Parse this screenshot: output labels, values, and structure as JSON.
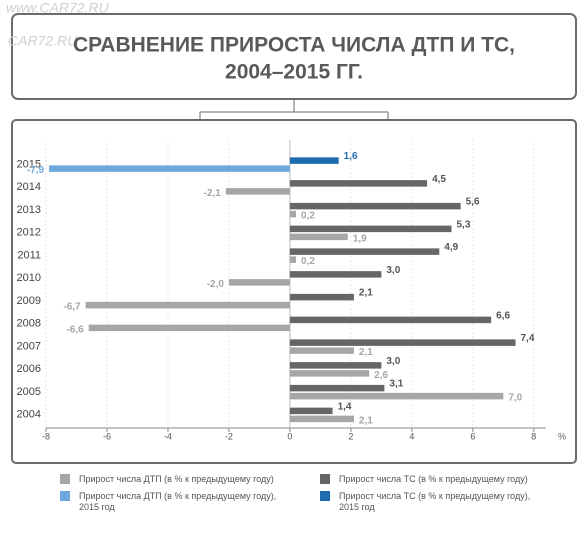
{
  "watermark": [
    "www.CAR72.RU",
    "CAR72.RU"
  ],
  "chart_data": {
    "type": "hbar",
    "title": "СРАВНЕНИЕ ПРИРОСТА ЧИСЛА ДТП И ТС,",
    "subtitle": "2004–2015 ГГ.",
    "x_unit_label": "%",
    "categories": [
      "2015",
      "2014",
      "2013",
      "2012",
      "2011",
      "2010",
      "2009",
      "2008",
      "2007",
      "2006",
      "2005",
      "2004"
    ],
    "series": [
      {
        "name": "Прирост числа ДТП (в % к предыдущему году)",
        "color": "#a6a6a6",
        "values": [
          null,
          -2.1,
          0.2,
          1.9,
          0.2,
          -2.0,
          -6.7,
          -6.6,
          2.1,
          2.6,
          7.0,
          2.1
        ],
        "value_labels": [
          null,
          "-2,1",
          "0,2",
          "1,9",
          "0,2",
          "-2,0",
          "-6,7",
          "-6,6",
          "2,1",
          "2,6",
          "7,0",
          "2,1"
        ]
      },
      {
        "name": "Прирост числа ДТП (в % к предыдущему году), 2015 год",
        "color": "#6fa8dc",
        "values": [
          -7.9,
          null,
          null,
          null,
          null,
          null,
          null,
          null,
          null,
          null,
          null,
          null
        ],
        "value_labels": [
          "-7,9",
          null,
          null,
          null,
          null,
          null,
          null,
          null,
          null,
          null,
          null,
          null
        ]
      },
      {
        "name": "Прирост числа ТС (в % к предыдущему году)",
        "color": "#666666",
        "values": [
          null,
          4.5,
          5.6,
          5.3,
          4.9,
          3.0,
          2.1,
          6.6,
          7.4,
          3.0,
          3.1,
          1.4
        ],
        "value_labels": [
          null,
          "4,5",
          "5,6",
          "5,3",
          "4,9",
          "3,0",
          "2,1",
          "6,6",
          "7,4",
          "3,0",
          "3,1",
          "1,4"
        ]
      },
      {
        "name": "Прирост числа ТС (в % к предыдущему году), 2015 год",
        "color": "#1f6bb0",
        "values": [
          1.6,
          null,
          null,
          null,
          null,
          null,
          null,
          null,
          null,
          null,
          null,
          null
        ],
        "value_labels": [
          "1,6",
          null,
          null,
          null,
          null,
          null,
          null,
          null,
          null,
          null,
          null,
          null
        ]
      }
    ],
    "xlim": [
      -8,
      8.4
    ],
    "xticks": [
      -8,
      -6,
      -4,
      -2,
      0,
      2,
      4,
      6,
      8
    ],
    "grid": true
  }
}
